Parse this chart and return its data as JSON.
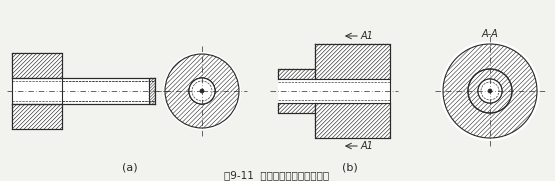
{
  "title": "图9-11  内、外螺纹连接的表示法",
  "bg_color": "#f2f2ee",
  "line_color": "#2a2a2a",
  "label_a": "(a)",
  "label_b": "(b)",
  "section_label_top": "A1",
  "section_label_bot": "A1",
  "view_label": "A-A"
}
